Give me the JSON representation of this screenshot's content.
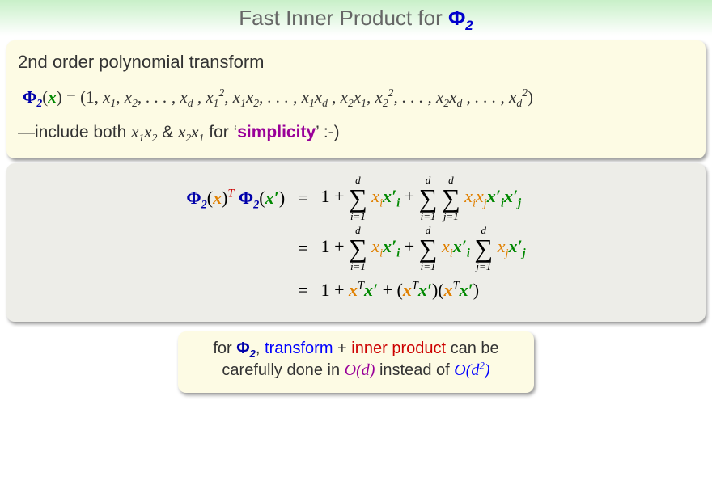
{
  "title": {
    "prefix": "Fast Inner Product for ",
    "phi": "Φ",
    "phi_sub": "2"
  },
  "colors": {
    "title_gray": "#666666",
    "blue": "#0000ff",
    "navy": "#0000aa",
    "green": "#008800",
    "orange": "#e08000",
    "red": "#cc0000",
    "purple": "#990099",
    "bg_yellow": "#fdfbe4",
    "bg_gray": "#edede8",
    "title_grad_top": "#c8f0c8",
    "title_grad_bot": "#ffffff"
  },
  "fonts": {
    "title_pt": 26,
    "body_pt": 21,
    "math_pt": 22,
    "bottom_pt": 20
  },
  "box1": {
    "heading": "2nd order polynomial transform",
    "phi": "Φ",
    "phi_sub": "2",
    "vec": "x",
    "expansion": " = (1, x₁, x₂, . . . , x_d, x₁², x₁x₂, . . . , x₁x_d, x₂x₁, x₂², . . . , x₂x_d, . . . , x_d²)",
    "note_prefix": "—include both ",
    "term1": "x₁x₂",
    "amp": " & ",
    "term2": "x₂x₁",
    "note_mid": " for ‘",
    "simplicity": "simplicity",
    "note_suf": "’ :-)"
  },
  "box2": {
    "lhs": {
      "phi": "Φ",
      "sub": "2",
      "x": "x",
      "T": "T",
      "xp": "x′"
    },
    "row1": {
      "one": "1 + ",
      "sum1_top": "d",
      "sum1_bot": "i=1",
      "t1a": "x",
      "t1a_sub": "i",
      "t1b": "x′",
      "t1b_sub": "i",
      "plus": " + ",
      "sum2_top": "d",
      "sum2_bot": "i=1",
      "sum3_top": "d",
      "sum3_bot": "j=1",
      "t2a": "x",
      "t2a_sub": "i",
      "t2b": "x",
      "t2b_sub": "j",
      "t2c": "x′",
      "t2c_sub": "i",
      "t2d": "x′",
      "t2d_sub": "j"
    },
    "row2": {
      "one": "1 + ",
      "sumA_top": "d",
      "sumA_bot": "i=1",
      "tA1": "x",
      "tA1_sub": "i",
      "tA2": "x′",
      "tA2_sub": "i",
      "plus": " + ",
      "sumB_top": "d",
      "sumB_bot": "i=1",
      "tB1": "x",
      "tB1_sub": "i",
      "tB2": "x′",
      "tB2_sub": "i",
      "sumC_top": "d",
      "sumC_bot": "j=1",
      "tC1": "x",
      "tC1_sub": "j",
      "tC2": "x′",
      "tC2_sub": "j"
    },
    "row3": {
      "text": "1 + ",
      "x": "x",
      "T": "T",
      "xp": "x′",
      "plus": " + (",
      "mid": ")(",
      "end": ")"
    }
  },
  "bottom": {
    "l1a": "for ",
    "phi": "Φ",
    "phi_sub": "2",
    "l1b": ", ",
    "transform": "transform",
    "l1c": " + ",
    "inner": "inner product",
    "l1d": " can be",
    "l2a": "carefully done in ",
    "Od": "O",
    "d": "d",
    "l2b": " instead of ",
    "Od2": "O",
    "d2": "d",
    "sq": "2"
  }
}
